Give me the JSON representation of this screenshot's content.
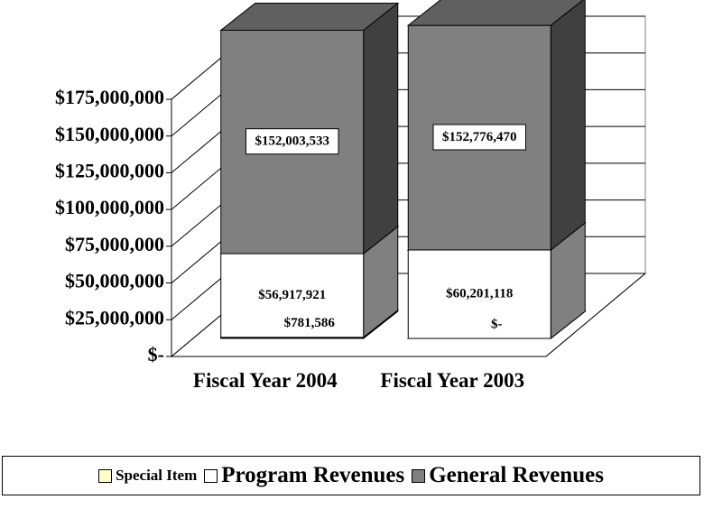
{
  "chart_data": {
    "type": "bar3d_stacked",
    "categories": [
      "Fiscal Year 2004",
      "Fiscal Year 2003"
    ],
    "series": [
      {
        "name": "Special Item",
        "color": "#ffffcc",
        "values": [
          781586,
          0
        ],
        "value_labels": [
          "$781,586",
          "$-"
        ]
      },
      {
        "name": "Program Revenues",
        "color": "#ffffff",
        "values": [
          56917921,
          60201118
        ],
        "value_labels": [
          "$56,917,921",
          "$60,201,118"
        ]
      },
      {
        "name": "General Revenues",
        "color": "#808080",
        "values": [
          152003533,
          152776470
        ],
        "value_labels": [
          "$152,003,533",
          "$152,776,470"
        ]
      }
    ],
    "ylim": [
      0,
      175000000
    ],
    "yticks": [
      {
        "value": 0,
        "label": "$-"
      },
      {
        "value": 25000000,
        "label": "$25,000,000"
      },
      {
        "value": 50000000,
        "label": "$50,000,000"
      },
      {
        "value": 75000000,
        "label": "$75,000,000"
      },
      {
        "value": 100000000,
        "label": "$100,000,000"
      },
      {
        "value": 125000000,
        "label": "$125,000,000"
      },
      {
        "value": 150000000,
        "label": "$150,000,000"
      },
      {
        "value": 175000000,
        "label": "$175,000,000"
      }
    ],
    "grid": true,
    "legend": "bottom"
  }
}
